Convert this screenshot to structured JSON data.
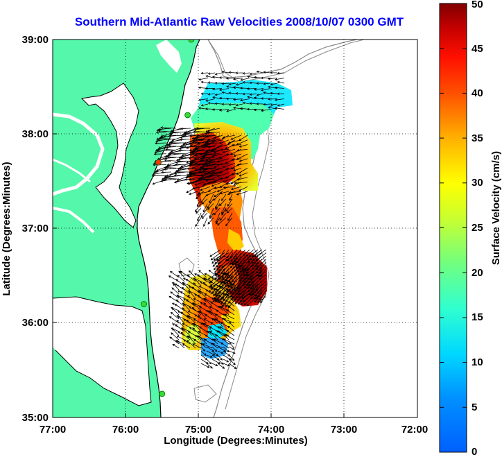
{
  "title": "Southern Mid-Atlantic Raw Velocities 2008/10/07 0300 GMT",
  "axes": {
    "xlabel": "Longitude (Degrees:Minutes)",
    "ylabel": "Latitude (Degrees:Minutes)",
    "x_ticks": [
      "77:00",
      "76:00",
      "75:00",
      "74:00",
      "73:00",
      "72:00"
    ],
    "y_ticks": [
      "39:00",
      "38:00",
      "37:00",
      "36:00",
      "35:00"
    ],
    "xlim": [
      -77,
      -72
    ],
    "ylim": [
      35,
      39
    ]
  },
  "colorbar": {
    "label": "Surface Velocity (cm/s)",
    "ticks": [
      "0",
      "5",
      "10",
      "15",
      "20",
      "25",
      "30",
      "35",
      "40",
      "45",
      "50"
    ],
    "min": 0,
    "max": 50
  },
  "colors": {
    "land": "#55f7aa",
    "title": "#0000ff",
    "site_marker": "#33dd33",
    "site_marker_red": "#ff3300"
  },
  "chart_data": {
    "type": "heatmap",
    "description_units": "degrees longitude/latitude, velocity cm/s",
    "velocity_patches": [
      {
        "region": "northern_cyan_band",
        "lon": [
          -74.9,
          -73.7
        ],
        "lat": [
          38.1,
          38.45
        ],
        "velocity": 10
      },
      {
        "region": "delmarva_offshore_max",
        "lon": [
          -75.1,
          -74.6
        ],
        "lat": [
          37.3,
          37.95
        ],
        "velocity": 48
      },
      {
        "region": "mid_transition_yellow",
        "lon": [
          -74.6,
          -74.3
        ],
        "lat": [
          37.4,
          37.9
        ],
        "velocity": 25
      },
      {
        "region": "central_orange",
        "lon": [
          -74.7,
          -74.4
        ],
        "lat": [
          36.85,
          37.25
        ],
        "velocity": 38
      },
      {
        "region": "southern_max",
        "lon": [
          -74.6,
          -74.1
        ],
        "lat": [
          36.3,
          36.75
        ],
        "velocity": 49
      },
      {
        "region": "hatteras_yellow_orange",
        "lon": [
          -75.3,
          -74.7
        ],
        "lat": [
          35.75,
          36.4
        ],
        "velocity": 32
      },
      {
        "region": "hatteras_blue",
        "lon": [
          -74.9,
          -74.6
        ],
        "lat": [
          35.6,
          35.85
        ],
        "velocity": 8
      }
    ],
    "sites": [
      {
        "lon": -75.1,
        "lat": 39.0,
        "type": "normal"
      },
      {
        "lon": -75.15,
        "lat": 38.2,
        "type": "normal"
      },
      {
        "lon": -75.55,
        "lat": 37.7,
        "type": "red"
      },
      {
        "lon": -75.75,
        "lat": 36.2,
        "type": "normal"
      },
      {
        "lon": -75.5,
        "lat": 35.25,
        "type": "normal"
      }
    ]
  }
}
